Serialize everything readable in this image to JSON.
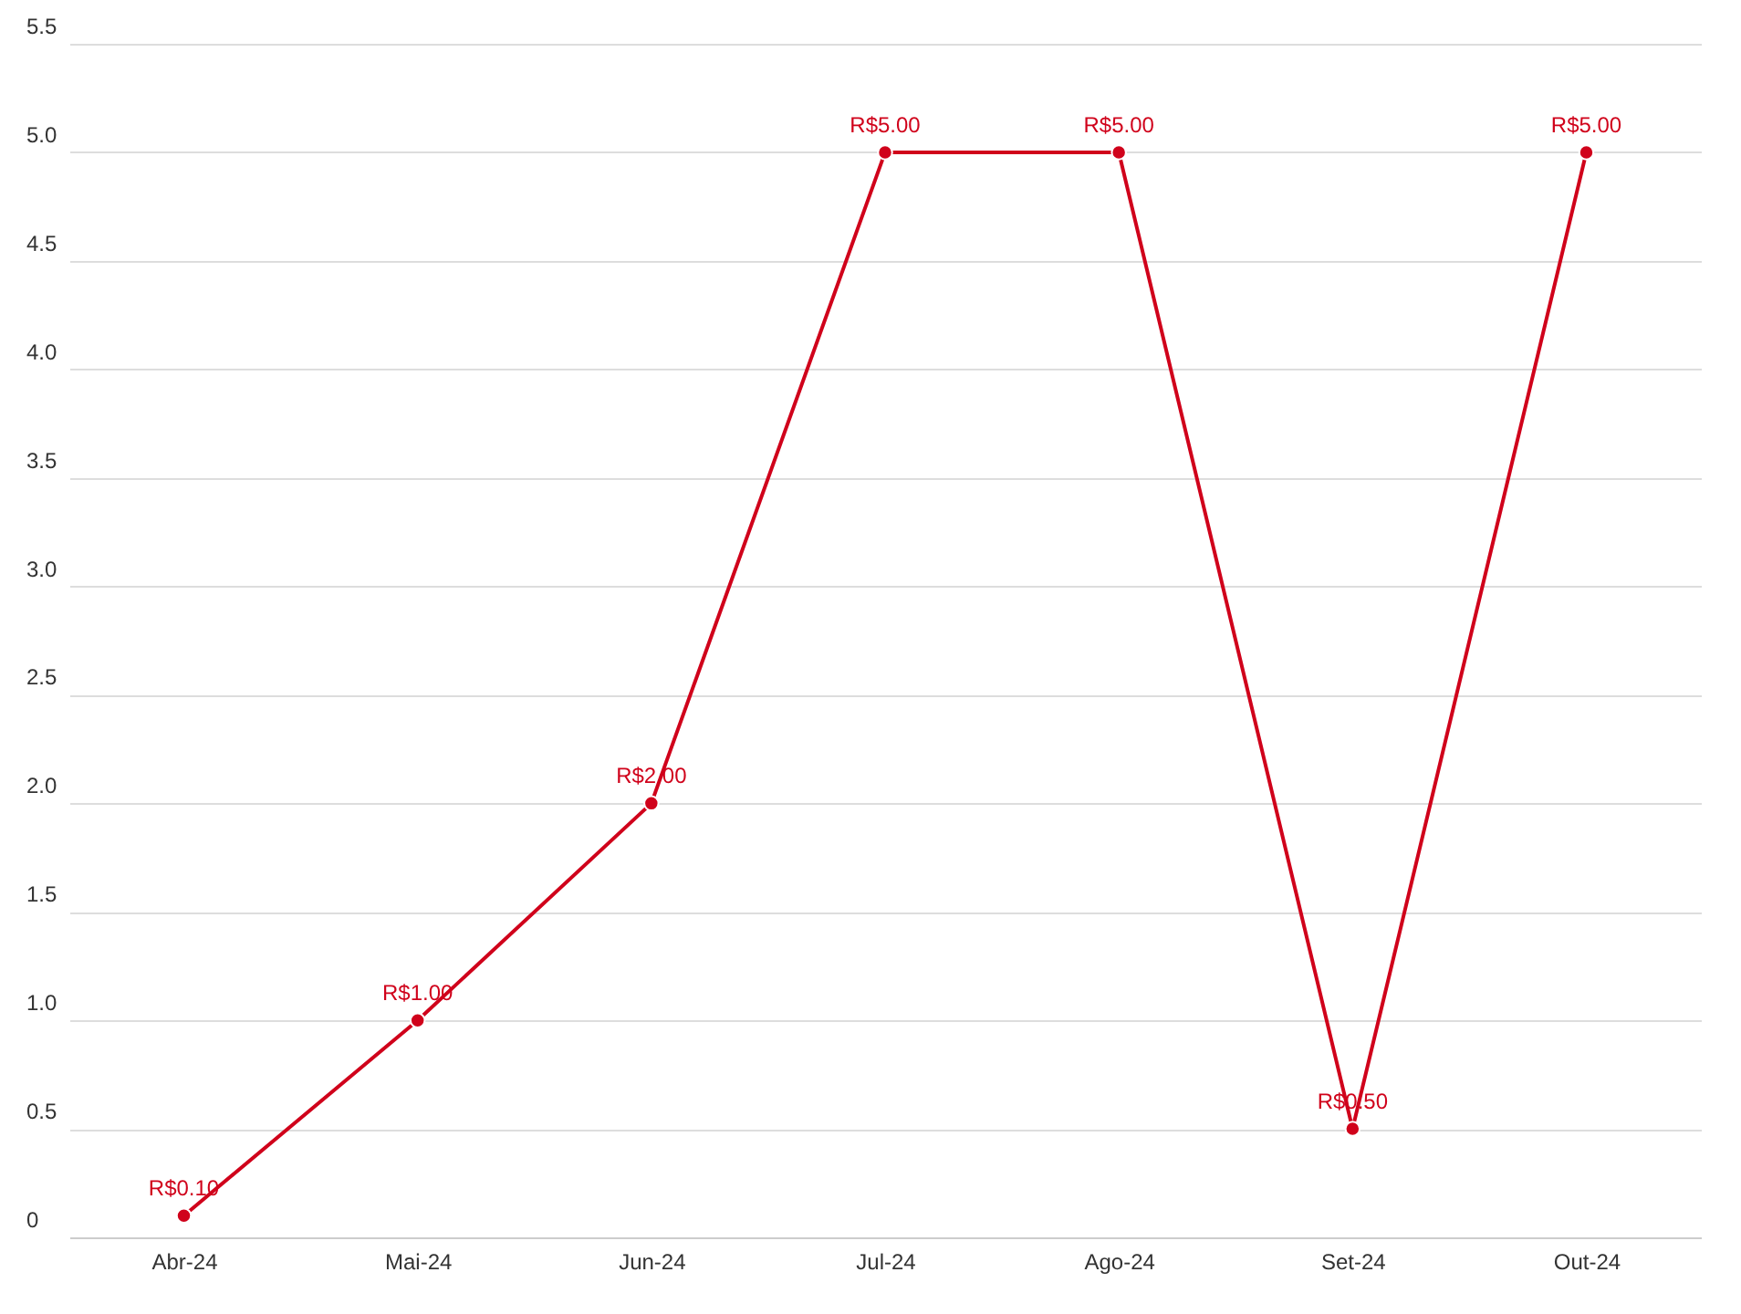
{
  "chart_data": {
    "type": "line",
    "categories": [
      "Abr-24",
      "Mai-24",
      "Jun-24",
      "Jul-24",
      "Ago-24",
      "Set-24",
      "Out-24"
    ],
    "values": [
      0.1,
      1,
      2,
      5,
      5,
      0.5,
      5
    ],
    "value_labels": [
      "R$0.10",
      "R$1.00",
      "R$2.00",
      "R$5.00",
      "R$5.00",
      "R$0.50",
      "R$5.00"
    ],
    "color": "#d0021b",
    "ylim": [
      0,
      5.5
    ],
    "yticks": [
      0,
      0.5,
      {
        "value": 1,
        "label": "1.0"
      },
      1.5,
      {
        "value": 2,
        "label": "2.0"
      },
      2.5,
      {
        "value": 3,
        "label": "3.0"
      },
      3.5,
      {
        "value": 4,
        "label": "4.0"
      },
      4.5,
      {
        "value": 5,
        "label": "5.0"
      },
      5.5
    ],
    "grid": "y",
    "marker": "circle"
  }
}
